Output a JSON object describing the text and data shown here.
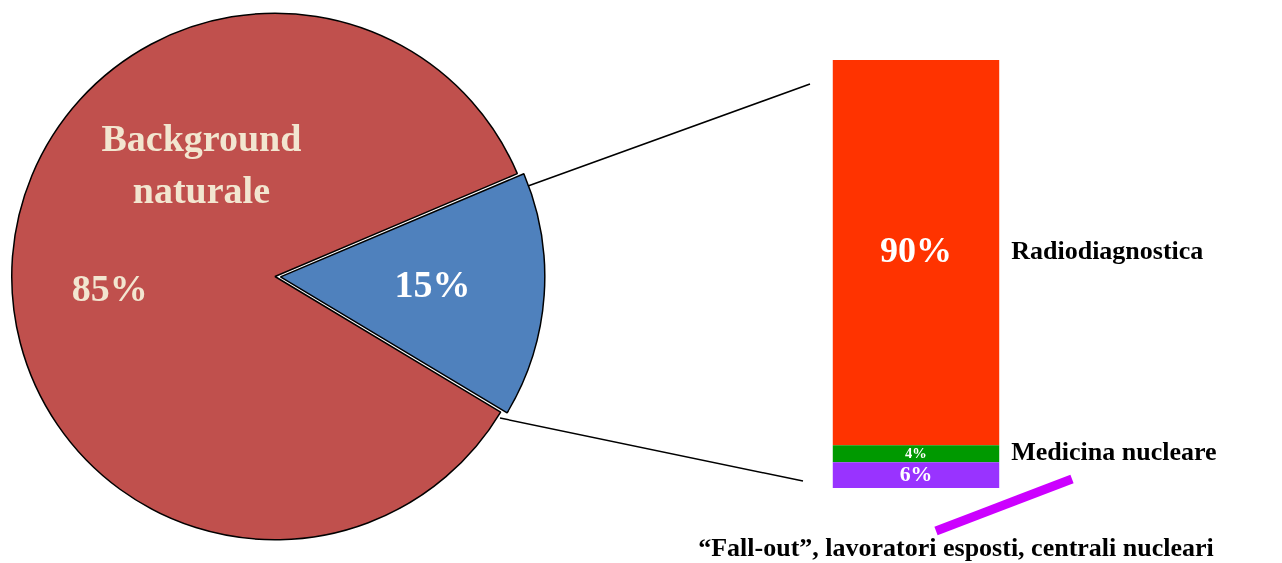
{
  "chart_data": [
    {
      "type": "pie",
      "categories": [
        "Background naturale",
        null
      ],
      "values": [
        85,
        15
      ],
      "colors": [
        "#c0504d",
        "#4f81bd"
      ],
      "value_labels": [
        "85%",
        "15%"
      ]
    },
    {
      "type": "bar",
      "stacked": true,
      "categories": [
        null
      ],
      "ylim": [
        0,
        100
      ],
      "tick_labels": false,
      "series": [
        {
          "name": "“Fall-out”, lavoratori esposti, centrali nucleari",
          "color": "#9933ff",
          "values": [
            6
          ],
          "value_labels": [
            "6%"
          ]
        },
        {
          "name": "Medicina nucleare",
          "color": "#009900",
          "values": [
            4
          ],
          "value_labels": [
            "4%"
          ]
        },
        {
          "name": "Radiodiagnostica",
          "color": "#ff3300",
          "values": [
            90
          ],
          "value_labels": [
            "90%"
          ]
        }
      ]
    }
  ]
}
